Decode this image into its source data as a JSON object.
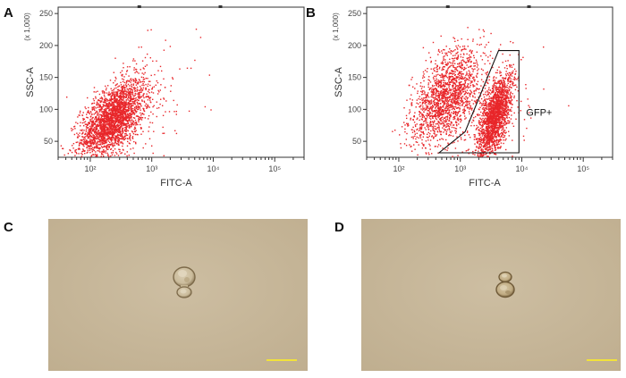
{
  "panels": {
    "A": {
      "label": "A"
    },
    "B": {
      "label": "B"
    },
    "C": {
      "label": "C"
    },
    "D": {
      "label": "D"
    }
  },
  "colors": {
    "dots": "#e8262a",
    "axis": "#333333",
    "gate": "#111111",
    "micro_bg": "#c8b89a",
    "scale_bar": "#f2e23a"
  },
  "chart_data": [
    {
      "panel": "A",
      "type": "scatter",
      "xlabel": "FITC-A",
      "ylabel": "SSC-A",
      "ylabel_multiplier": "(x 1,000)",
      "xscale": "log",
      "xlim": [
        30,
        300000
      ],
      "ylim": [
        25,
        260
      ],
      "xticks": [
        {
          "v": 100,
          "label": "10²"
        },
        {
          "v": 1000,
          "label": "10³"
        },
        {
          "v": 10000,
          "label": "10⁴"
        },
        {
          "v": 100000,
          "label": "10⁵"
        }
      ],
      "yticks": [
        50,
        100,
        150,
        200,
        250
      ],
      "populations": [
        {
          "n": 2600,
          "logx_mean": 2.35,
          "logx_sd": 0.26,
          "y_mean": 85,
          "y_sd": 30,
          "corr": 0.55
        },
        {
          "n": 180,
          "logx_mean": 2.85,
          "logx_sd": 0.45,
          "y_mean": 110,
          "y_sd": 45,
          "corr": 0.2
        }
      ]
    },
    {
      "panel": "B",
      "type": "scatter",
      "xlabel": "FITC-A",
      "ylabel": "SSC-A",
      "ylabel_multiplier": "(x 1,000)",
      "xscale": "log",
      "xlim": [
        30,
        300000
      ],
      "ylim": [
        25,
        260
      ],
      "xticks": [
        {
          "v": 100,
          "label": "10²"
        },
        {
          "v": 1000,
          "label": "10³"
        },
        {
          "v": 10000,
          "label": "10⁴"
        },
        {
          "v": 100000,
          "label": "10⁵"
        }
      ],
      "yticks": [
        50,
        100,
        150,
        200,
        250
      ],
      "populations": [
        {
          "n": 1700,
          "logx_mean": 2.75,
          "logx_sd": 0.28,
          "y_mean": 120,
          "y_sd": 38,
          "corr": 0.5
        },
        {
          "n": 1900,
          "logx_mean": 3.55,
          "logx_sd": 0.14,
          "y_mean": 90,
          "y_sd": 33,
          "corr": 0.6
        },
        {
          "n": 150,
          "logx_mean": 3.3,
          "logx_sd": 0.45,
          "y_mean": 90,
          "y_sd": 45,
          "corr": 0.2
        }
      ],
      "gate": {
        "label": "GFP+",
        "points": [
          [
            450,
            32
          ],
          [
            1200,
            65
          ],
          [
            4200,
            192
          ],
          [
            9000,
            192
          ],
          [
            9000,
            32
          ]
        ]
      }
    }
  ],
  "images": [
    {
      "panel": "C",
      "description_hidden": true
    },
    {
      "panel": "D",
      "description_hidden": true
    }
  ]
}
